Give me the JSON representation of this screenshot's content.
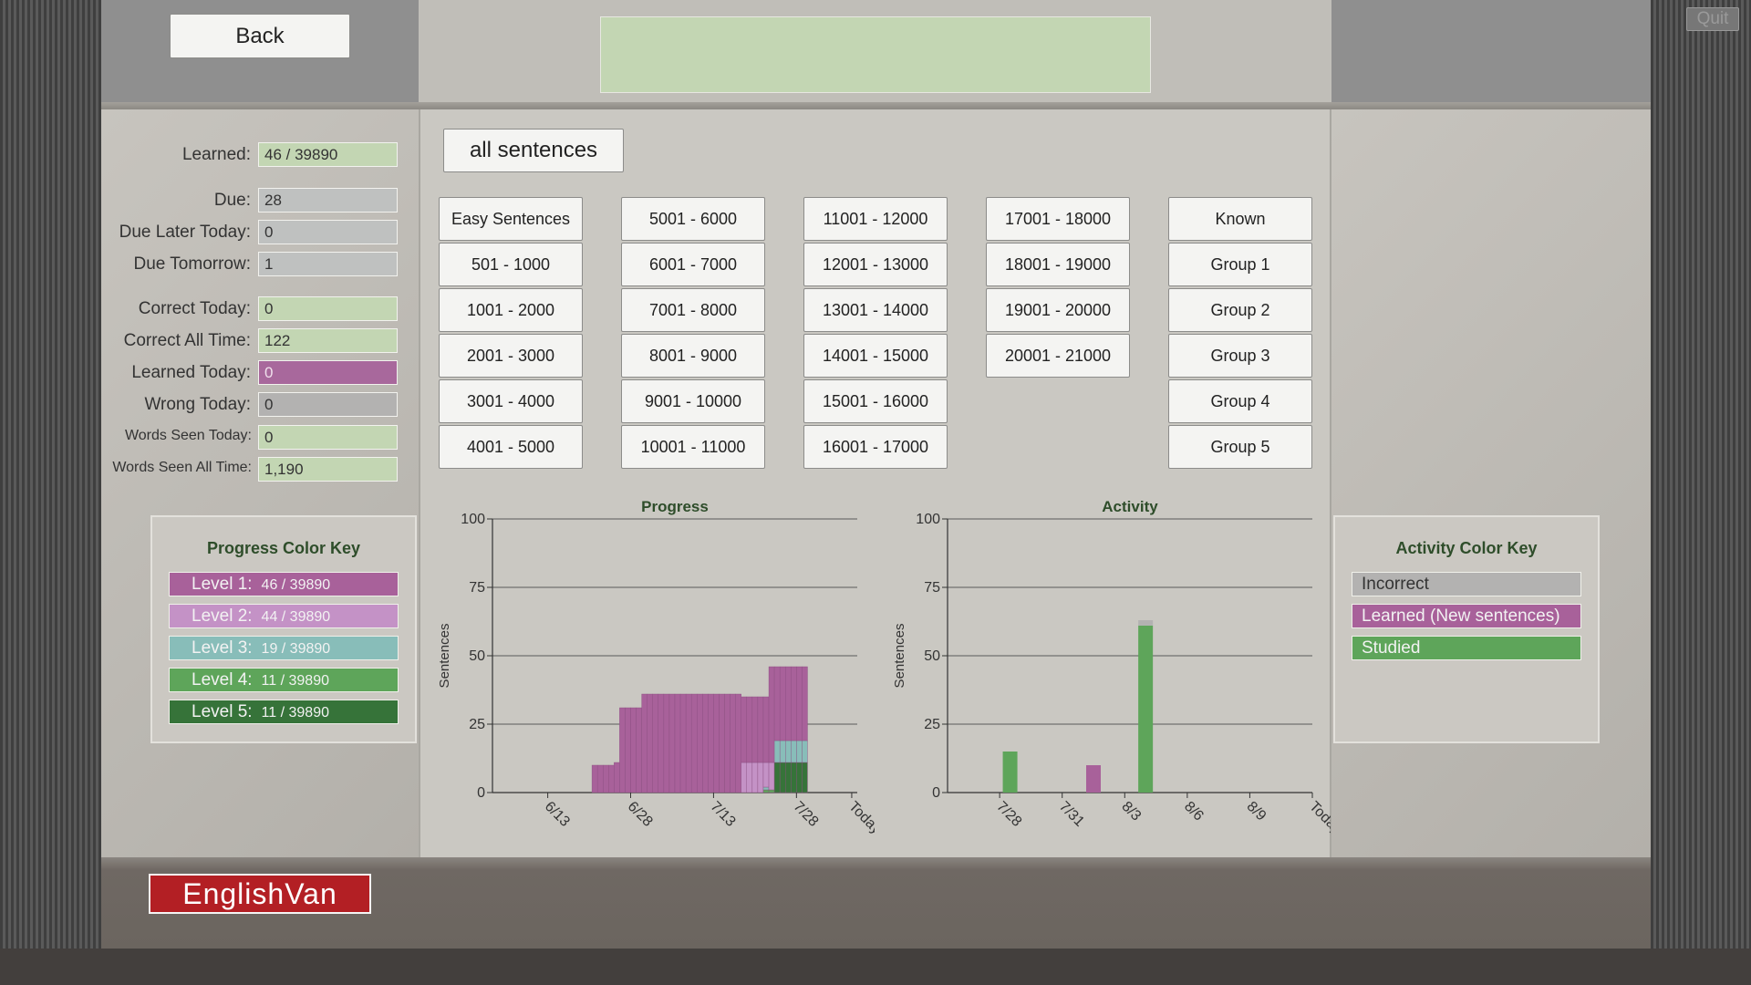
{
  "window": {
    "quit_label": "Quit",
    "back_label": "Back",
    "message": ""
  },
  "filter": {
    "all_sentences_label": "all sentences"
  },
  "stats": [
    {
      "label": "Learned:",
      "value": "46 / 39890",
      "style": "green",
      "small": false
    },
    {
      "label": "Due:",
      "value": "28",
      "style": "gray",
      "small": false
    },
    {
      "label": "Due Later Today:",
      "value": "0",
      "style": "gray",
      "small": false
    },
    {
      "label": "Due Tomorrow:",
      "value": "1",
      "style": "gray",
      "small": false
    },
    {
      "label": "Correct Today:",
      "value": "0",
      "style": "green",
      "small": false
    },
    {
      "label": "Correct All Time:",
      "value": "122",
      "style": "green",
      "small": false
    },
    {
      "label": "Learned Today:",
      "value": "0",
      "style": "purple",
      "small": false
    },
    {
      "label": "Wrong Today:",
      "value": "0",
      "style": "graybox",
      "small": false
    },
    {
      "label": "Words Seen Today:",
      "value": "0",
      "style": "green",
      "small": true
    },
    {
      "label": "Words Seen All Time:",
      "value": "1,190",
      "style": "green",
      "small": true
    }
  ],
  "sentence_groups": [
    [
      "Easy Sentences",
      "501 - 1000",
      "1001 - 2000",
      "2001 - 3000",
      "3001 - 4000",
      "4001 - 5000"
    ],
    [
      "5001 - 6000",
      "6001 - 7000",
      "7001 - 8000",
      "8001 - 9000",
      "9001 - 10000",
      "10001 - 11000"
    ],
    [
      "11001 - 12000",
      "12001 - 13000",
      "13001 - 14000",
      "14001 - 15000",
      "15001 - 16000",
      "16001 - 17000"
    ],
    [
      "17001 - 18000",
      "18001 - 19000",
      "19001 - 20000",
      "20001 - 21000"
    ],
    [
      "Known",
      "Group 1",
      "Group 2",
      "Group 3",
      "Group 4",
      "Group 5"
    ]
  ],
  "progress_key": {
    "title": "Progress Color Key",
    "items": [
      {
        "label": "Level 1:",
        "count": "46 / 39890",
        "color": "#a8619a"
      },
      {
        "label": "Level 2:",
        "count": "44 / 39890",
        "color": "#c492c6"
      },
      {
        "label": "Level 3:",
        "count": "19 / 39890",
        "color": "#88bdb9"
      },
      {
        "label": "Level 4:",
        "count": "11 / 39890",
        "color": "#5ea55a"
      },
      {
        "label": "Level 5:",
        "count": "11 / 39890",
        "color": "#367339"
      }
    ]
  },
  "activity_key": {
    "title": "Activity Color Key",
    "items": [
      {
        "label": "Incorrect",
        "color": "#b3b2b1"
      },
      {
        "label": "Learned (New sentences)",
        "color": "#a8619a"
      },
      {
        "label": "Studied",
        "color": "#5ea55a"
      }
    ]
  },
  "logo": {
    "text": "EnglishVan"
  },
  "chart_data": [
    {
      "type": "bar",
      "title": "Progress",
      "ylabel": "Sentences",
      "ylim": [
        0,
        100
      ],
      "yticks": [
        0,
        25,
        50,
        75,
        100
      ],
      "xtick_labels": [
        "6/13",
        "6/28",
        "7/13",
        "7/28",
        "Today"
      ],
      "grid": true,
      "stacked": true,
      "series_note": "daily stacked bars; stack order from bottom: Level 5, Level 4, Level 3, Level 2, Level 1",
      "days": [
        {
          "day": 18,
          "levels": [
            10,
            0,
            0,
            0,
            0
          ]
        },
        {
          "day": 19,
          "levels": [
            10,
            0,
            0,
            0,
            0
          ]
        },
        {
          "day": 20,
          "levels": [
            10,
            0,
            0,
            0,
            0
          ]
        },
        {
          "day": 21,
          "levels": [
            10,
            0,
            0,
            0,
            0
          ]
        },
        {
          "day": 22,
          "levels": [
            11,
            0,
            0,
            0,
            0
          ]
        },
        {
          "day": 23,
          "levels": [
            31,
            0,
            0,
            0,
            0
          ]
        },
        {
          "day": 24,
          "levels": [
            31,
            0,
            0,
            0,
            0
          ]
        },
        {
          "day": 25,
          "levels": [
            31,
            0,
            0,
            0,
            0
          ]
        },
        {
          "day": 26,
          "levels": [
            31,
            0,
            0,
            0,
            0
          ]
        },
        {
          "day": 27,
          "levels": [
            36,
            0,
            0,
            0,
            0
          ]
        },
        {
          "day": 28,
          "levels": [
            36,
            0,
            0,
            0,
            0
          ]
        },
        {
          "day": 29,
          "levels": [
            36,
            0,
            0,
            0,
            0
          ]
        },
        {
          "day": 30,
          "levels": [
            36,
            0,
            0,
            0,
            0
          ]
        },
        {
          "day": 31,
          "levels": [
            36,
            0,
            0,
            0,
            0
          ]
        },
        {
          "day": 32,
          "levels": [
            36,
            0,
            0,
            0,
            0
          ]
        },
        {
          "day": 33,
          "levels": [
            36,
            0,
            0,
            0,
            0
          ]
        },
        {
          "day": 34,
          "levels": [
            36,
            0,
            0,
            0,
            0
          ]
        },
        {
          "day": 35,
          "levels": [
            36,
            0,
            0,
            0,
            0
          ]
        },
        {
          "day": 36,
          "levels": [
            36,
            0,
            0,
            0,
            0
          ]
        },
        {
          "day": 37,
          "levels": [
            36,
            0,
            0,
            0,
            0
          ]
        },
        {
          "day": 38,
          "levels": [
            36,
            0,
            0,
            0,
            0
          ]
        },
        {
          "day": 39,
          "levels": [
            36,
            0,
            0,
            0,
            0
          ]
        },
        {
          "day": 40,
          "levels": [
            36,
            0,
            0,
            0,
            0
          ]
        },
        {
          "day": 41,
          "levels": [
            36,
            0,
            0,
            0,
            0
          ]
        },
        {
          "day": 42,
          "levels": [
            36,
            0,
            0,
            0,
            0
          ]
        },
        {
          "day": 43,
          "levels": [
            36,
            0,
            0,
            0,
            0
          ]
        },
        {
          "day": 44,
          "levels": [
            36,
            0,
            0,
            0,
            0
          ]
        },
        {
          "day": 45,
          "levels": [
            24,
            11,
            0,
            0,
            0
          ]
        },
        {
          "day": 46,
          "levels": [
            24,
            11,
            0,
            0,
            0
          ]
        },
        {
          "day": 47,
          "levels": [
            24,
            11,
            0,
            0,
            0
          ]
        },
        {
          "day": 48,
          "levels": [
            24,
            11,
            0,
            0,
            0
          ]
        },
        {
          "day": 49,
          "levels": [
            24,
            9,
            1,
            1,
            0
          ]
        },
        {
          "day": 50,
          "levels": [
            35,
            10,
            0,
            1,
            0
          ]
        },
        {
          "day": 51,
          "levels": [
            27,
            0,
            8,
            0,
            11
          ]
        },
        {
          "day": 52,
          "levels": [
            27,
            0,
            8,
            0,
            11
          ]
        },
        {
          "day": 53,
          "levels": [
            27,
            0,
            8,
            0,
            11
          ]
        },
        {
          "day": 54,
          "levels": [
            27,
            0,
            8,
            0,
            11
          ]
        },
        {
          "day": 55,
          "levels": [
            27,
            0,
            8,
            0,
            11
          ]
        },
        {
          "day": 56,
          "levels": [
            27,
            0,
            8,
            0,
            11
          ]
        }
      ],
      "x_range_days": [
        0,
        66
      ]
    },
    {
      "type": "bar",
      "title": "Activity",
      "ylabel": "Sentences",
      "ylim": [
        0,
        100
      ],
      "yticks": [
        0,
        25,
        50,
        75,
        100
      ],
      "xtick_labels": [
        "7/28",
        "7/31",
        "8/3",
        "8/6",
        "8/9",
        "Today"
      ],
      "grid": true,
      "stacked": true,
      "series": [
        {
          "name": "Studied",
          "color": "#5ea55a",
          "points": [
            {
              "day": 3,
              "value": 15
            },
            {
              "day": 9.5,
              "value": 61
            }
          ]
        },
        {
          "name": "Learned (New sentences)",
          "color": "#a8619a",
          "points": [
            {
              "day": 7,
              "value": 10
            }
          ]
        },
        {
          "name": "Incorrect",
          "color": "#b3b2b1",
          "points": [
            {
              "day": 9.5,
              "value": 2
            }
          ]
        }
      ],
      "x_range_days": [
        0,
        17.5
      ]
    }
  ]
}
